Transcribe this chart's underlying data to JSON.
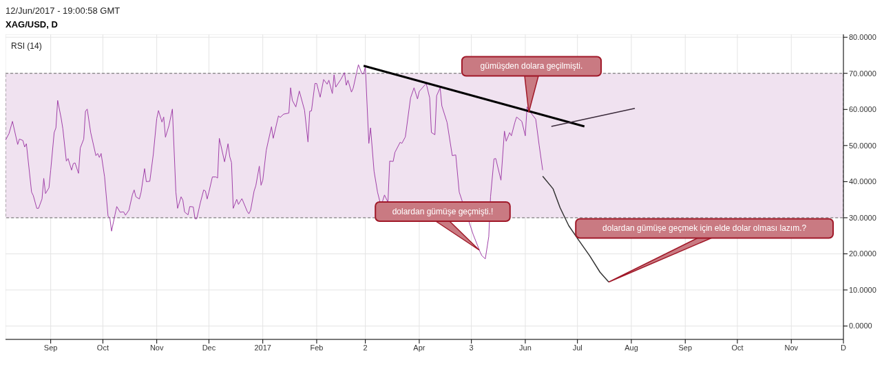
{
  "chart_data": {
    "type": "line",
    "title": "XAG/USD, D",
    "ylabel": "RSI (14)",
    "annotations": [
      "12/Jun/2017 - 19:00:58 GMT",
      {
        "text": "gümüşden dolara geçilmişti.",
        "x": "2017-06-03",
        "y": 59.2
      },
      "dolardan gümüşe geçmişti.!",
      {
        "text": "dolardan gümüşe geçmek için elde dolar olması lazım.?",
        "x": "2017-07-19",
        "y": 12.2
      }
    ],
    "xlim": [
      "2016-08-06",
      "2017-12-01"
    ],
    "xticks": [
      {
        "value": "2016-09-01",
        "label": "Sep"
      },
      {
        "value": "2016-10-01",
        "label": "Oct"
      },
      {
        "value": "2016-11-01",
        "label": "Nov"
      },
      {
        "value": "2016-12-01",
        "label": "Dec"
      },
      {
        "value": "2017-01-01",
        "label": "2017"
      },
      {
        "value": "2017-02-01",
        "label": "Feb"
      },
      {
        "value": "2017-03-01",
        "label": "2"
      },
      {
        "value": "2017-04-01",
        "label": "Apr"
      },
      {
        "value": "2017-05-01",
        "label": "3"
      },
      {
        "value": "2017-06-01",
        "label": "Jun"
      },
      {
        "value": "2017-07-01",
        "label": "Jul"
      },
      {
        "value": "2017-08-01",
        "label": "Aug"
      },
      {
        "value": "2017-09-01",
        "label": "Sep"
      },
      {
        "value": "2017-10-01",
        "label": "Oct"
      },
      {
        "value": "2017-11-01",
        "label": "Nov"
      },
      {
        "value": "2017-12-01",
        "label": "D"
      }
    ],
    "ylim": [
      -3.7,
      80.8
    ],
    "yticks": [
      {
        "value": 0,
        "label": "0.0000"
      },
      {
        "value": 10,
        "label": "10.0000"
      },
      {
        "value": 20,
        "label": "20.0000"
      },
      {
        "value": 30,
        "label": "30.0000"
      },
      {
        "value": 40,
        "label": "40.0000"
      },
      {
        "value": 50,
        "label": "50.0000"
      },
      {
        "value": 60,
        "label": "60.0000"
      },
      {
        "value": 70,
        "label": "70.0000"
      },
      {
        "value": 80,
        "label": "80.0000"
      }
    ],
    "grid": true,
    "bands": [
      {
        "axis": "y",
        "from": 30,
        "to": 70,
        "color": "#f0e2f0"
      }
    ],
    "series": [
      {
        "color": "#a040a8",
        "x": [
          "2016-08-06",
          "2016-08-08",
          "2016-08-10",
          "2016-08-13",
          "2016-08-14",
          "2016-08-16",
          "2016-08-17",
          "2016-08-18",
          "2016-08-21",
          "2016-08-22",
          "2016-08-24",
          "2016-08-25",
          "2016-08-27",
          "2016-08-28",
          "2016-08-29",
          "2016-08-31",
          "2016-09-01",
          "2016-09-03",
          "2016-09-04",
          "2016-09-05",
          "2016-09-07",
          "2016-09-08",
          "2016-09-10",
          "2016-09-11",
          "2016-09-13",
          "2016-09-14",
          "2016-09-15",
          "2016-09-17",
          "2016-09-18",
          "2016-09-20",
          "2016-09-21",
          "2016-09-22",
          "2016-09-24",
          "2016-09-27",
          "2016-09-28",
          "2016-09-29",
          "2016-09-30",
          "2016-10-02",
          "2016-10-04",
          "2016-10-05",
          "2016-10-06",
          "2016-10-08",
          "2016-10-09",
          "2016-10-11",
          "2016-10-12",
          "2016-10-13",
          "2016-10-14",
          "2016-10-16",
          "2016-10-18",
          "2016-10-19",
          "2016-10-20",
          "2016-10-22",
          "2016-10-23",
          "2016-10-25",
          "2016-10-26",
          "2016-10-28",
          "2016-10-30",
          "2016-11-01",
          "2016-11-02",
          "2016-11-04",
          "2016-11-05",
          "2016-11-06",
          "2016-11-08",
          "2016-11-10",
          "2016-11-12",
          "2016-11-13",
          "2016-11-15",
          "2016-11-16",
          "2016-11-17",
          "2016-11-19",
          "2016-11-20",
          "2016-11-22",
          "2016-11-23",
          "2016-11-24",
          "2016-11-26",
          "2016-11-28",
          "2016-11-29",
          "2016-11-30",
          "2016-12-01",
          "2016-12-03",
          "2016-12-05",
          "2016-12-06",
          "2016-12-07",
          "2016-12-10",
          "2016-12-12",
          "2016-12-13",
          "2016-12-14",
          "2016-12-15",
          "2016-12-17",
          "2016-12-18",
          "2016-12-20",
          "2016-12-23",
          "2016-12-24",
          "2016-12-25",
          "2016-12-27",
          "2016-12-28",
          "2016-12-30",
          "2016-12-31",
          "2017-01-01",
          "2017-01-03",
          "2017-01-04",
          "2017-01-06",
          "2017-01-07",
          "2017-01-10",
          "2017-01-11",
          "2017-01-13",
          "2017-01-16",
          "2017-01-17",
          "2017-01-18",
          "2017-01-20",
          "2017-01-22",
          "2017-01-25",
          "2017-01-27",
          "2017-01-28",
          "2017-01-29",
          "2017-01-31",
          "2017-02-01",
          "2017-02-03",
          "2017-02-05",
          "2017-02-07",
          "2017-02-08",
          "2017-02-10",
          "2017-02-11",
          "2017-02-12",
          "2017-02-15",
          "2017-02-17",
          "2017-02-18",
          "2017-02-19",
          "2017-02-21",
          "2017-02-22",
          "2017-02-25",
          "2017-02-27",
          "2017-02-28",
          "2017-03-01",
          "2017-03-03",
          "2017-03-04",
          "2017-03-06",
          "2017-03-08",
          "2017-03-10",
          "2017-03-12",
          "2017-03-14",
          "2017-03-15",
          "2017-03-17",
          "2017-03-18",
          "2017-03-21",
          "2017-03-22",
          "2017-03-24",
          "2017-03-27",
          "2017-03-29",
          "2017-03-31",
          "2017-04-01",
          "2017-04-05",
          "2017-04-07",
          "2017-04-08",
          "2017-04-10",
          "2017-04-11",
          "2017-04-13",
          "2017-04-14",
          "2017-04-17",
          "2017-04-20",
          "2017-04-22",
          "2017-04-24",
          "2017-04-28",
          "2017-05-02",
          "2017-05-06",
          "2017-05-07",
          "2017-05-09",
          "2017-05-11",
          "2017-05-12",
          "2017-05-14",
          "2017-05-15",
          "2017-05-18",
          "2017-05-20",
          "2017-05-21",
          "2017-05-23",
          "2017-05-24",
          "2017-05-26",
          "2017-05-27",
          "2017-05-30",
          "2017-06-01",
          "2017-06-02",
          "2017-06-04",
          "2017-06-05",
          "2017-06-07",
          "2017-06-09",
          "2017-06-11"
        ],
        "values": [
          51.5,
          53.3,
          56.7,
          50.3,
          51.8,
          51.4,
          49.6,
          50.5,
          37.1,
          36.1,
          32.6,
          32.6,
          35.2,
          40.9,
          36.7,
          38.3,
          43.2,
          53.6,
          54.9,
          62.5,
          57.6,
          54.6,
          45.7,
          46.4,
          43.2,
          45.0,
          45.2,
          42.3,
          49.3,
          51.8,
          59.5,
          60.1,
          53.6,
          47.2,
          47.8,
          46.7,
          47.8,
          41.3,
          30.4,
          30.0,
          26.3,
          30.9,
          33.1,
          31.5,
          31.6,
          31.6,
          30.7,
          32.1,
          36.4,
          37.7,
          35.8,
          35.2,
          37.1,
          43.6,
          40.0,
          40.1,
          47.5,
          57.5,
          59.7,
          56.5,
          57.9,
          52.3,
          55.5,
          60.1,
          37.1,
          32.6,
          35.8,
          34.9,
          31.6,
          30.8,
          33.1,
          33.0,
          29.7,
          29.7,
          34.0,
          37.7,
          37.4,
          35.2,
          37.1,
          41.3,
          41.3,
          41.0,
          52.0,
          45.5,
          50.5,
          46.9,
          45.3,
          32.6,
          35.1,
          33.7,
          35.3,
          31.8,
          31.1,
          32.1,
          37.4,
          38.9,
          44.3,
          39.0,
          40.4,
          48.7,
          50.9,
          55.2,
          52.0,
          58.2,
          57.8,
          58.7,
          59.0,
          66.0,
          62.5,
          60.7,
          65.1,
          59.8,
          51.0,
          59.5,
          59.6,
          67.2,
          67.2,
          63.4,
          68.3,
          67.0,
          68.1,
          64.4,
          69.6,
          66.2,
          68.4,
          70.2,
          66.7,
          68.1,
          64.8,
          65.9,
          72.4,
          69.9,
          69.9,
          71.8,
          50.6,
          54.9,
          42.9,
          37.1,
          33.2,
          36.3,
          34.3,
          45.7,
          45.6,
          48.1,
          50.9,
          50.6,
          52.4,
          63.2,
          66.0,
          62.9,
          65.0,
          67.2,
          63.2,
          53.6,
          53.0,
          63.8,
          66.0,
          61.0,
          56.4,
          47.2,
          47.4,
          37.1,
          null,
          25.4,
          20.5,
          19.5,
          18.6,
          24.8,
          35.8,
          46.3,
          46.4,
          40.4,
          54.0,
          51.2,
          53.6,
          52.7,
          56.4,
          57.9,
          56.7,
          52.7,
          60.7,
          59.2,
          null,
          57.3,
          50.0,
          43.2
        ]
      },
      {
        "color": "#000000",
        "x": [
          "2017-02-28",
          "2017-07-05"
        ],
        "values": [
          72.1,
          55.3
        ]
      },
      {
        "color": "#3a2a3a",
        "x": [
          "2017-06-16",
          "2017-08-03"
        ],
        "values": [
          55.3,
          60.3
        ]
      },
      {
        "color": "#333333",
        "x": [
          "2017-06-11",
          "2017-06-17",
          "2017-06-21",
          "2017-06-26",
          "2017-07-02",
          "2017-07-08",
          "2017-07-14",
          "2017-07-19"
        ],
        "values": [
          41.5,
          38.0,
          32.8,
          27.8,
          23.6,
          19.5,
          14.9,
          12.2
        ]
      }
    ]
  }
}
